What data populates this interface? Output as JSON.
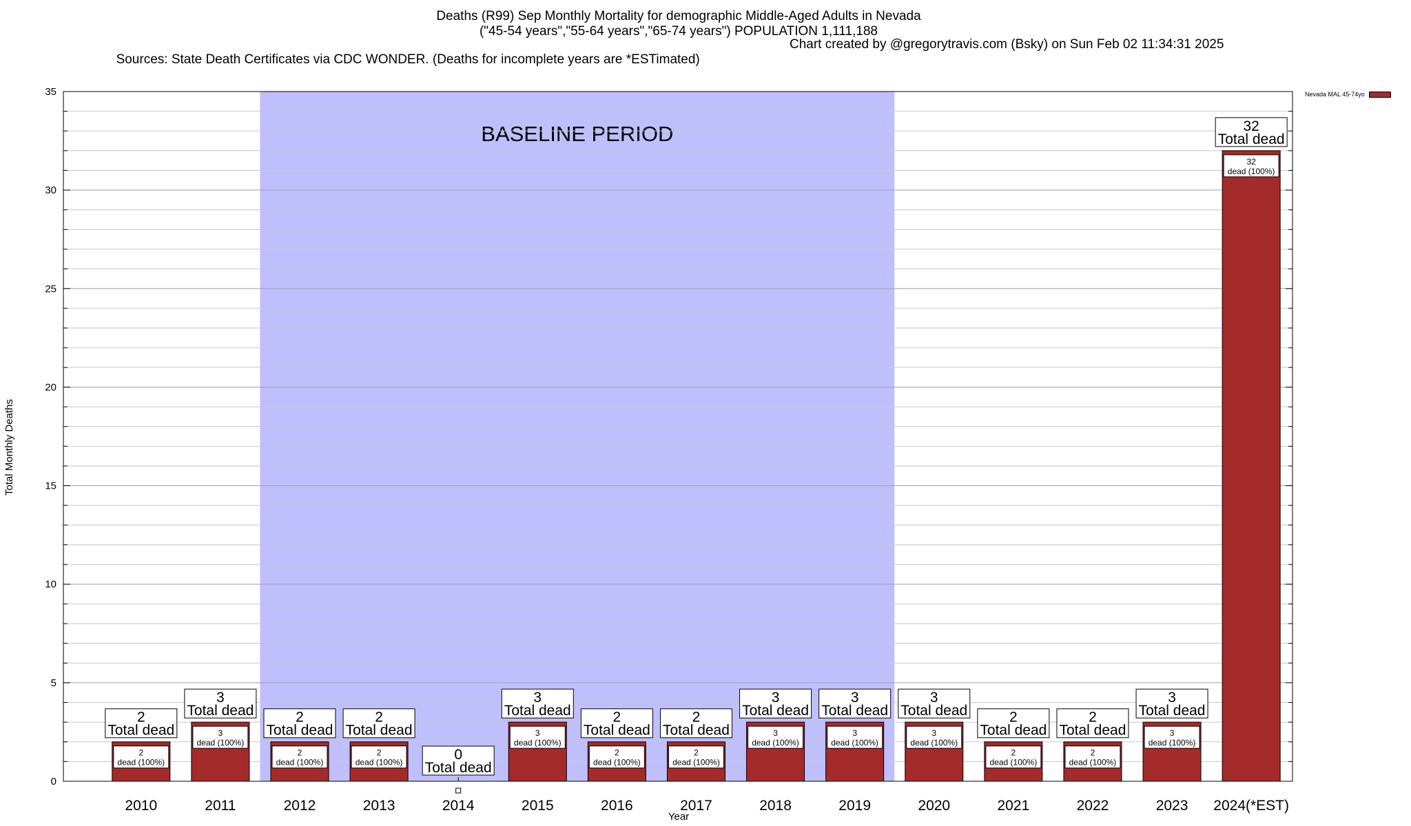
{
  "header": {
    "title_line1": "Deaths (R99) Sep Monthly Mortality for demographic Middle-Aged Adults in Nevada",
    "title_line2": "(\"45-54 years\",\"55-64 years\",\"65-74 years\") POPULATION 1,111,188",
    "sources": "Sources: State Death Certificates via CDC WONDER. (Deaths for incomplete years are *ESTimated)",
    "credit": "Chart created by @gregorytravis.com (Bsky) on Sun Feb 02 11:34:31 2025"
  },
  "colors": {
    "bar": "#a52a2a",
    "baseline_shade": "#bfbffe"
  },
  "chart_data": {
    "type": "bar",
    "title": "Deaths (R99) Sep Monthly Mortality for demographic Middle-Aged Adults in Nevada",
    "xlabel": "Year",
    "ylabel": "Total Monthly Deaths",
    "ylim": [
      0,
      35
    ],
    "yticks": [
      0,
      5,
      10,
      15,
      20,
      25,
      30,
      35
    ],
    "grid": true,
    "legend_position": "top-right",
    "categories": [
      "2010",
      "2011",
      "2012",
      "2013",
      "2014",
      "2015",
      "2016",
      "2017",
      "2018",
      "2019",
      "2020",
      "2021",
      "2022",
      "2023",
      "2024(*EST)"
    ],
    "series": [
      {
        "name": "Nevada MAL 45-74yo",
        "values": [
          2,
          3,
          2,
          2,
          0,
          3,
          2,
          2,
          3,
          3,
          3,
          2,
          2,
          3,
          32
        ]
      }
    ],
    "total_label": "Total dead",
    "inner_label": "dead (100%)",
    "annotation": {
      "text": "BASELINE PERIOD",
      "from": "2012",
      "to": "2019"
    }
  }
}
